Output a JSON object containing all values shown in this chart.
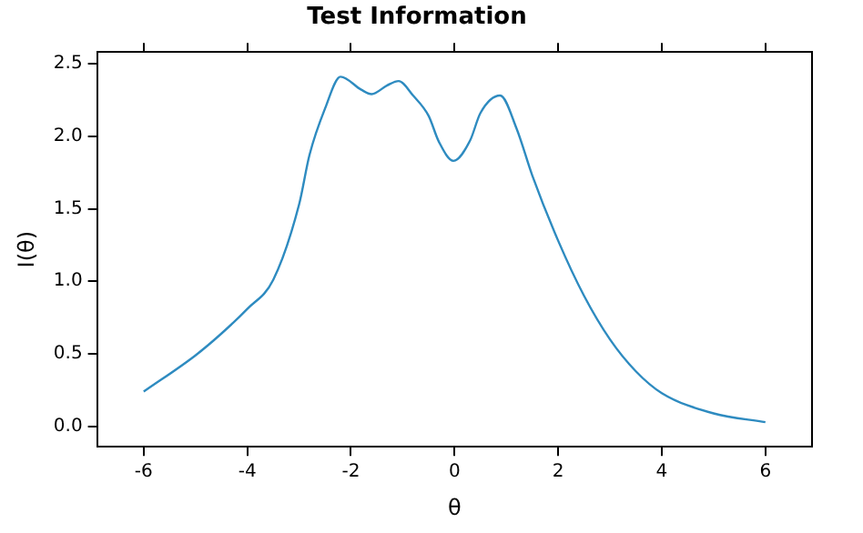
{
  "chart_data": {
    "type": "line",
    "title": "Test Information",
    "xlabel": "θ",
    "ylabel": "I(θ)",
    "xlim": [
      -6.9,
      6.9
    ],
    "ylim": [
      -0.14,
      2.58
    ],
    "xticks": [
      -6,
      -4,
      -2,
      0,
      2,
      4,
      6
    ],
    "yticks": [
      {
        "value": 0,
        "label": "0.0"
      },
      0.5,
      {
        "value": 1,
        "label": "1.0"
      },
      1.5,
      {
        "value": 2,
        "label": "2.0"
      },
      2.5
    ],
    "grid": false,
    "legend": false,
    "marker": "none",
    "line_style": "solid",
    "series": [
      {
        "color": "#2e8bc0",
        "x": [
          -6,
          -5,
          -4.5,
          -4,
          -3.5,
          -3,
          -2.8,
          -2.5,
          -2.2,
          -1.8,
          -1.6,
          -1.3,
          -1.08,
          -0.8,
          -0.5,
          -0.3,
          -0.02,
          0.3,
          0.5,
          0.88,
          1.2,
          1.5,
          2,
          2.5,
          3,
          3.5,
          4,
          5,
          6
        ],
        "values": [
          0.24,
          0.49,
          0.64,
          0.81,
          1.01,
          1.53,
          1.87,
          2.19,
          2.41,
          2.32,
          2.29,
          2.35,
          2.38,
          2.28,
          2.14,
          1.96,
          1.83,
          1.97,
          2.16,
          2.28,
          2.05,
          1.73,
          1.28,
          0.9,
          0.6,
          0.38,
          0.23,
          0.09,
          0.03
        ]
      }
    ]
  }
}
